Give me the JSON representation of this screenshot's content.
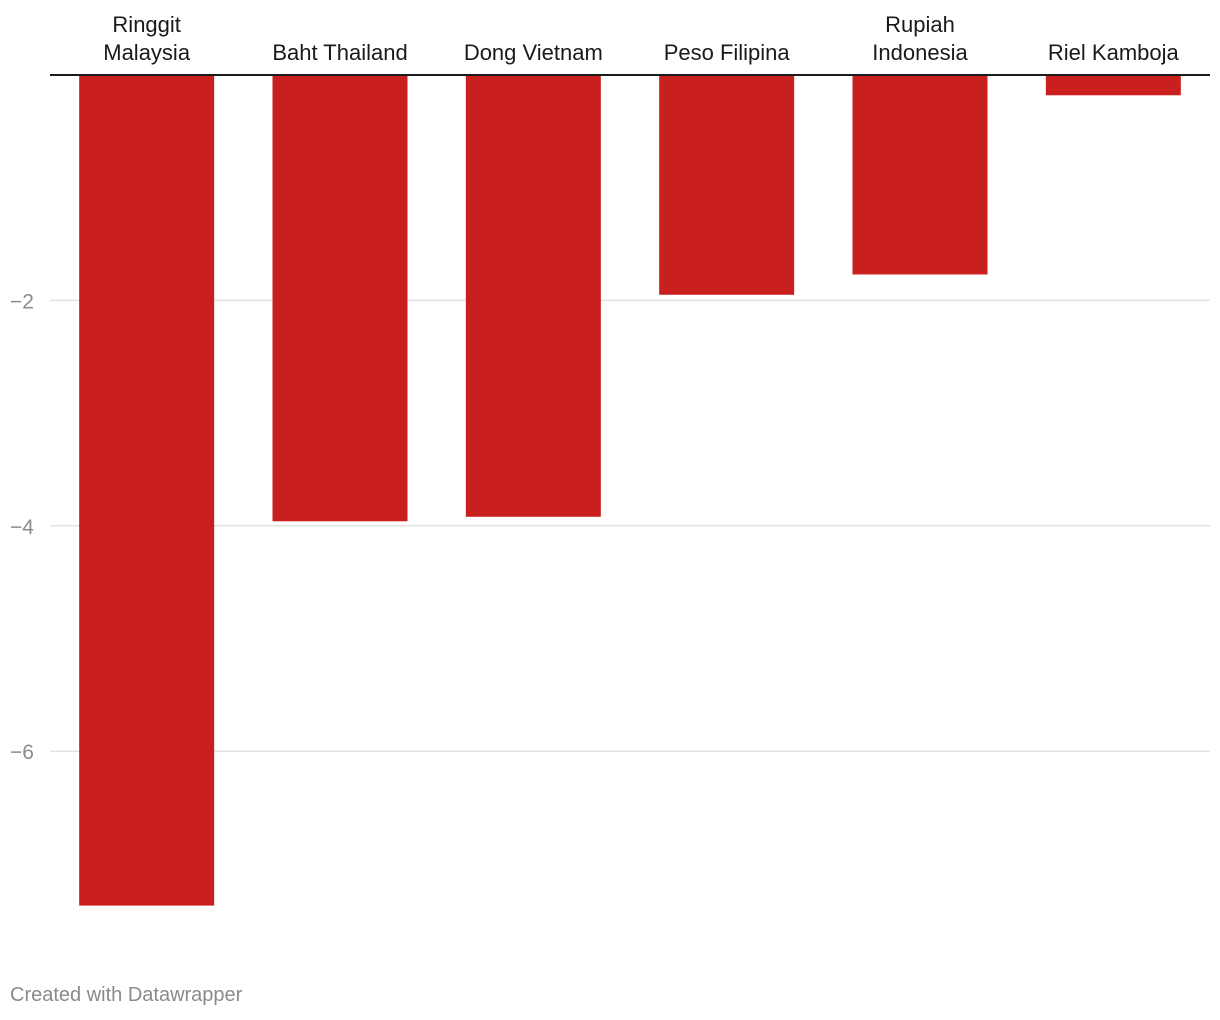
{
  "chart_data": {
    "type": "bar",
    "categories": [
      [
        "Ringgit",
        "Malaysia"
      ],
      [
        "Baht Thailand"
      ],
      [
        "Dong Vietnam"
      ],
      [
        "Peso Filipina"
      ],
      [
        "Rupiah",
        "Indonesia"
      ],
      [
        "Riel Kamboja"
      ]
    ],
    "values": [
      -7.37,
      -3.96,
      -3.92,
      -1.95,
      -1.77,
      -0.18
    ],
    "ylim": [
      -7.37,
      0
    ],
    "yticks": [
      -2,
      -4,
      -6
    ],
    "ytick_labels": [
      "−2",
      "−4",
      "−6"
    ],
    "grid": true,
    "bar_color": "#c91f1f",
    "title": "",
    "xlabel": "",
    "ylabel": ""
  },
  "footer": {
    "credit": "Created with Datawrapper"
  }
}
